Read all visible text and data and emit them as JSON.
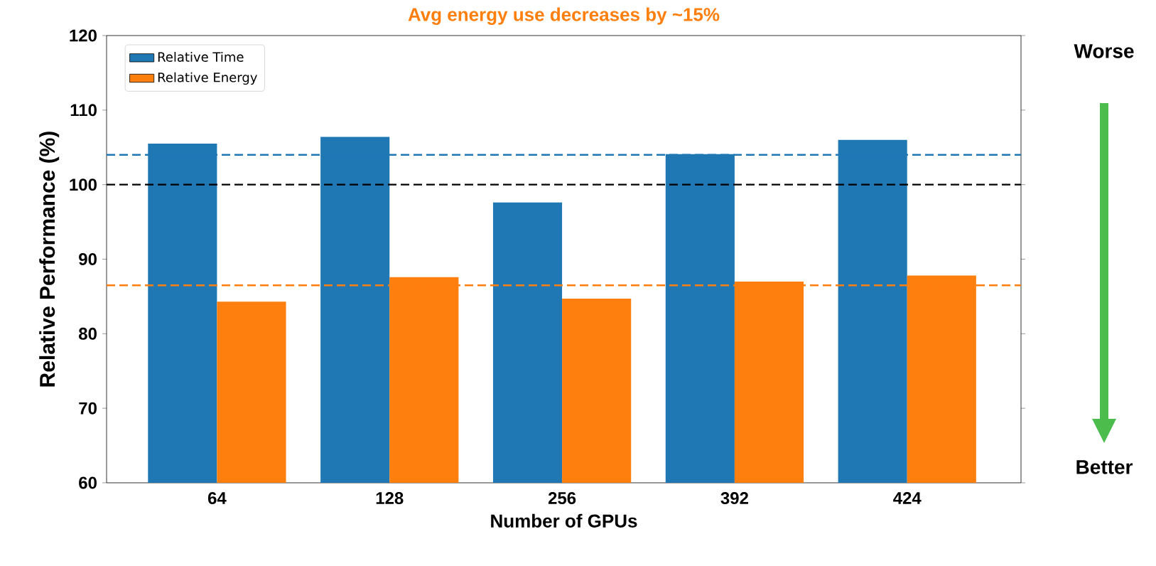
{
  "chart_data": {
    "type": "bar",
    "title": "Avg energy use decreases by ~15%",
    "xlabel": "Number of GPUs",
    "ylabel": "Relative Performance (%)",
    "categories": [
      "64",
      "128",
      "256",
      "392",
      "424"
    ],
    "series": [
      {
        "name": "Relative Time",
        "color": "#1f77b4",
        "values": [
          105.5,
          106.4,
          97.6,
          104.1,
          106.0
        ]
      },
      {
        "name": "Relative Energy",
        "color": "#ff7f0e",
        "values": [
          84.3,
          87.6,
          84.7,
          87.0,
          87.8
        ]
      }
    ],
    "ylim": [
      60,
      120
    ],
    "yticks": [
      60,
      70,
      80,
      90,
      100,
      110,
      120
    ],
    "ref_lines": [
      {
        "axis": "y",
        "value": 104.0,
        "color": "#1f77b4",
        "line_style": "dashed"
      },
      {
        "axis": "y",
        "value": 100,
        "color": "#000000",
        "line_style": "dashed"
      },
      {
        "axis": "y",
        "value": 86.5,
        "color": "#ff7f0e",
        "line_style": "dashed"
      }
    ],
    "legend": "top left",
    "annotations": [
      "Worse",
      "Better"
    ]
  }
}
